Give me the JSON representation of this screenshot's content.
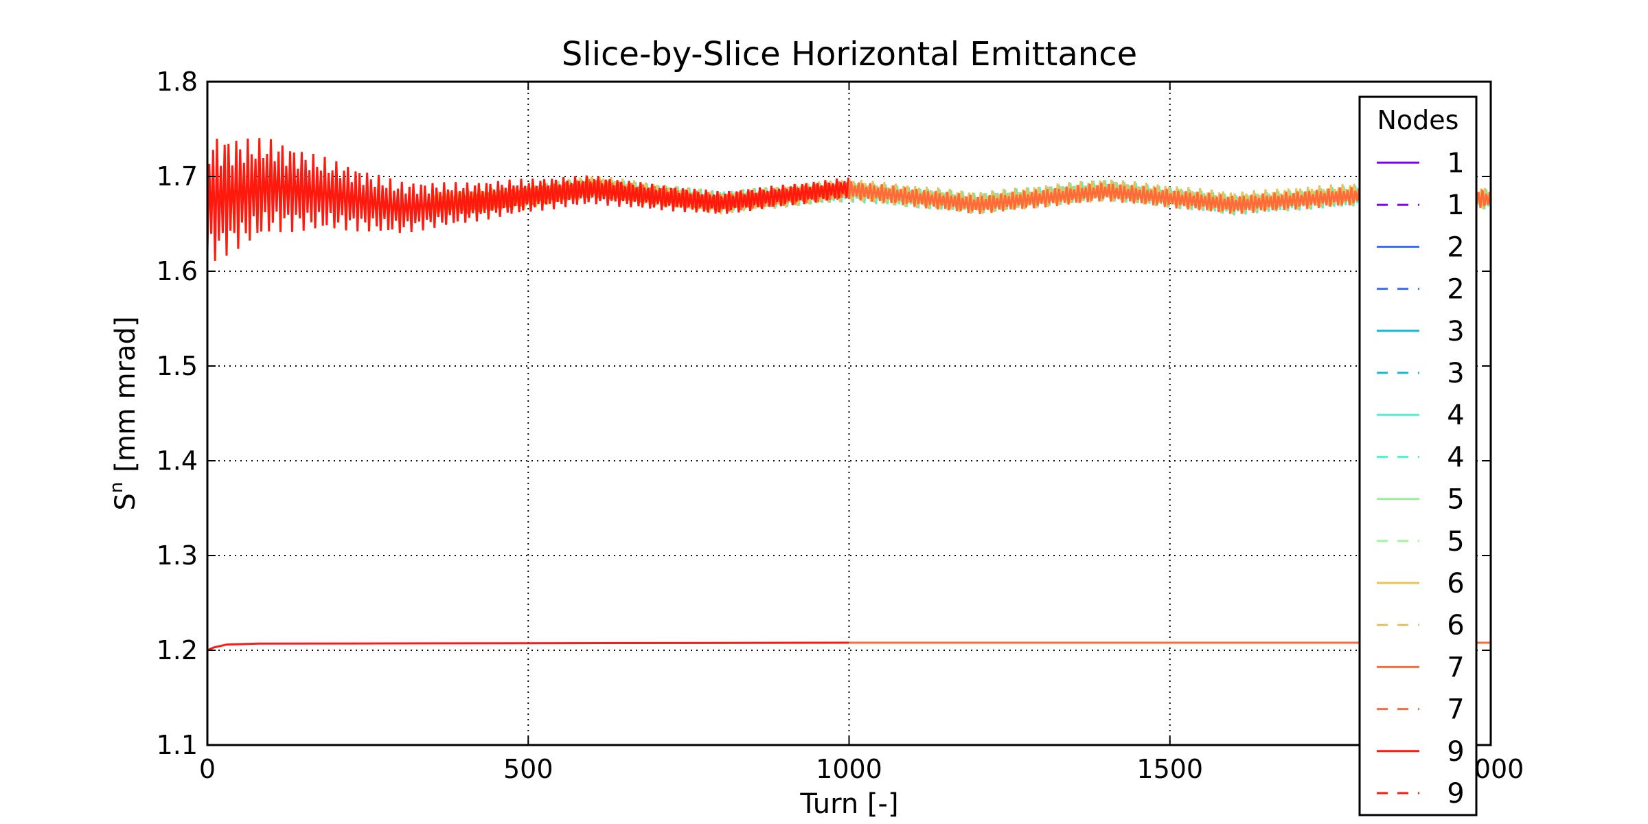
{
  "chart_data": {
    "type": "line",
    "title": "Slice-by-Slice Horizontal Emittance",
    "xlabel": "Turn [-]",
    "ylabel": {
      "base": "S",
      "sup": "n",
      "rest": "[mm mrad]"
    },
    "xlim": [
      0,
      2000
    ],
    "ylim": [
      1.1,
      1.8
    ],
    "xticks": [
      0,
      500,
      1000,
      1500,
      2000
    ],
    "xtick_labels": [
      "0",
      "500",
      "1000",
      "1500",
      "2000"
    ],
    "yticks": [
      1.1,
      1.2,
      1.3,
      1.4,
      1.5,
      1.6,
      1.7,
      1.8
    ],
    "ytick_labels": [
      "1.1",
      "1.2",
      "1.3",
      "1.4",
      "1.5",
      "1.6",
      "1.7",
      "1.8"
    ],
    "grid": true,
    "legend": {
      "title": "Nodes",
      "placement": "upper-right",
      "entries": [
        {
          "label": "1",
          "color": "#7f00ff",
          "style": "solid"
        },
        {
          "label": "1",
          "color": "#7f00ff",
          "style": "dashed"
        },
        {
          "label": "2",
          "color": "#386df9",
          "style": "solid"
        },
        {
          "label": "2",
          "color": "#386df9",
          "style": "dashed"
        },
        {
          "label": "3",
          "color": "#15b9d3",
          "style": "solid"
        },
        {
          "label": "3",
          "color": "#15b9d3",
          "style": "dashed"
        },
        {
          "label": "4",
          "color": "#4df3ce",
          "style": "solid"
        },
        {
          "label": "4",
          "color": "#4df3ce",
          "style": "dashed"
        },
        {
          "label": "5",
          "color": "#92f893",
          "style": "solid"
        },
        {
          "label": "5",
          "color": "#a4f5a0",
          "style": "dashed"
        },
        {
          "label": "6",
          "color": "#e8c25a",
          "style": "solid"
        },
        {
          "label": "6",
          "color": "#e8c25a",
          "style": "dashed"
        },
        {
          "label": "7",
          "color": "#ff6a3a",
          "style": "solid"
        },
        {
          "label": "7",
          "color": "#ff6a3a",
          "style": "dashed"
        },
        {
          "label": "9",
          "color": "#ff1a0d",
          "style": "solid"
        },
        {
          "label": "9",
          "color": "#ff1a0d",
          "style": "dashed"
        }
      ]
    },
    "series": [
      {
        "color": "#4df3ce",
        "turn_range": [
          400,
          2000
        ],
        "center": [
          [
            400,
            1.672
          ],
          [
            600,
            1.688
          ],
          [
            800,
            1.674
          ],
          [
            1000,
            1.684
          ],
          [
            1200,
            1.672
          ],
          [
            1400,
            1.686
          ],
          [
            1600,
            1.67
          ],
          [
            1800,
            1.68
          ],
          [
            2000,
            1.676
          ]
        ],
        "amplitude": 0.011
      },
      {
        "color": "#e8c25a",
        "turn_range": [
          350,
          2000
        ],
        "center": [
          [
            350,
            1.672
          ],
          [
            500,
            1.678
          ],
          [
            600,
            1.69
          ],
          [
            800,
            1.672
          ],
          [
            1000,
            1.686
          ],
          [
            1200,
            1.672
          ],
          [
            1400,
            1.686
          ],
          [
            1600,
            1.672
          ],
          [
            1800,
            1.682
          ],
          [
            2000,
            1.677
          ]
        ],
        "amplitude": 0.012
      },
      {
        "color": "#ff6a3a",
        "turn_range": [
          400,
          2000
        ],
        "center": [
          [
            400,
            1.67
          ],
          [
            600,
            1.688
          ],
          [
            800,
            1.672
          ],
          [
            1000,
            1.686
          ],
          [
            1200,
            1.67
          ],
          [
            1400,
            1.684
          ],
          [
            1600,
            1.67
          ],
          [
            1800,
            1.68
          ],
          [
            2000,
            1.676
          ]
        ],
        "amplitude": 0.01
      },
      {
        "color": "#ff1a0d",
        "turn_range": [
          0,
          1000
        ],
        "center": [
          [
            0,
            1.675
          ],
          [
            100,
            1.69
          ],
          [
            200,
            1.68
          ],
          [
            300,
            1.667
          ],
          [
            400,
            1.672
          ],
          [
            500,
            1.68
          ],
          [
            600,
            1.686
          ],
          [
            700,
            1.678
          ],
          [
            800,
            1.672
          ],
          [
            900,
            1.68
          ],
          [
            1000,
            1.688
          ]
        ],
        "amplitude_start": 0.07,
        "amplitude_end": 0.01
      },
      {
        "color": "#ff6a3a",
        "turn_range": [
          1000,
          2000
        ],
        "values": [
          [
            1000,
            1.208
          ],
          [
            2000,
            1.208
          ]
        ]
      },
      {
        "color": "#ff1a0d",
        "turn_range": [
          0,
          1000
        ],
        "values": [
          [
            0,
            1.2
          ],
          [
            10,
            1.203
          ],
          [
            30,
            1.206
          ],
          [
            80,
            1.207
          ],
          [
            1000,
            1.208
          ]
        ]
      }
    ]
  }
}
